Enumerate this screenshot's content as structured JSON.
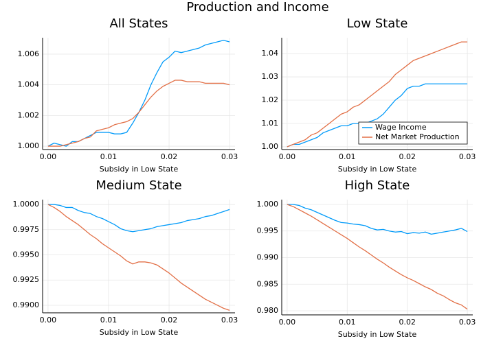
{
  "title": "Production and Income",
  "chart_data": [
    {
      "type": "line",
      "title": "All States",
      "x_label": "Subsidy in Low State",
      "x": [
        0,
        0.001,
        0.002,
        0.003,
        0.004,
        0.005,
        0.006,
        0.007,
        0.008,
        0.009,
        0.01,
        0.011,
        0.012,
        0.013,
        0.014,
        0.015,
        0.016,
        0.017,
        0.018,
        0.019,
        0.02,
        0.021,
        0.022,
        0.023,
        0.024,
        0.025,
        0.026,
        0.027,
        0.028,
        0.029,
        0.03
      ],
      "xlim": [
        -0.0009,
        0.0309
      ],
      "xticks": [
        {
          "value": 0,
          "label": "0.00"
        },
        0.01,
        0.02,
        0.03
      ],
      "ylim": [
        0.99978,
        1.00707
      ],
      "yticks": [
        {
          "value": 1,
          "label": "1.000"
        },
        1.002,
        1.004,
        1.006
      ],
      "grid": true,
      "series": [
        {
          "color": "#009af9",
          "values": [
            1.0,
            1.0002,
            1.0001,
            1.0,
            1.0003,
            1.0003,
            1.0005,
            1.0007,
            1.0009,
            1.0009,
            1.0009,
            1.0008,
            1.0008,
            1.0009,
            1.0015,
            1.0022,
            1.003,
            1.004,
            1.0048,
            1.0055,
            1.0058,
            1.0062,
            1.0061,
            1.0062,
            1.0063,
            1.0064,
            1.0066,
            1.0067,
            1.0068,
            1.0069,
            1.0068
          ]
        },
        {
          "color": "#e26f46",
          "values": [
            1.0,
            1.0,
            1.0,
            1.0001,
            1.0002,
            1.0003,
            1.0005,
            1.0006,
            1.001,
            1.0011,
            1.0012,
            1.0014,
            1.0015,
            1.0016,
            1.0018,
            1.0022,
            1.0027,
            1.0032,
            1.0036,
            1.0039,
            1.0041,
            1.0043,
            1.0043,
            1.0042,
            1.0042,
            1.0042,
            1.0041,
            1.0041,
            1.0041,
            1.0041,
            1.004
          ]
        }
      ]
    },
    {
      "type": "line",
      "title": "Low State",
      "x_label": "Subsidy in Low State",
      "x": [
        0,
        0.001,
        0.002,
        0.003,
        0.004,
        0.005,
        0.006,
        0.007,
        0.008,
        0.009,
        0.01,
        0.011,
        0.012,
        0.013,
        0.014,
        0.015,
        0.016,
        0.017,
        0.018,
        0.019,
        0.02,
        0.021,
        0.022,
        0.023,
        0.024,
        0.025,
        0.026,
        0.027,
        0.028,
        0.029,
        0.03
      ],
      "xlim": [
        -0.0009,
        0.0309
      ],
      "xticks": [
        {
          "value": 0,
          "label": "0.00"
        },
        0.01,
        0.02,
        0.03
      ],
      "ylim": [
        0.9988,
        1.0468
      ],
      "yticks": [
        {
          "value": 1,
          "label": "1.00"
        },
        1.01,
        1.02,
        1.03,
        1.04
      ],
      "grid": true,
      "legend": "bottom right",
      "series": [
        {
          "name": "Wage Income",
          "color": "#009af9",
          "values": [
            1.0,
            1.001,
            1.001,
            1.002,
            1.003,
            1.004,
            1.006,
            1.007,
            1.008,
            1.009,
            1.009,
            1.01,
            1.01,
            1.01,
            1.011,
            1.012,
            1.014,
            1.017,
            1.02,
            1.022,
            1.025,
            1.026,
            1.026,
            1.027,
            1.027,
            1.027,
            1.027,
            1.027,
            1.027,
            1.027,
            1.027
          ]
        },
        {
          "name": "Net Market Production",
          "color": "#e26f46",
          "values": [
            1.0,
            1.001,
            1.002,
            1.003,
            1.005,
            1.006,
            1.008,
            1.01,
            1.012,
            1.014,
            1.015,
            1.017,
            1.018,
            1.02,
            1.022,
            1.024,
            1.026,
            1.028,
            1.031,
            1.033,
            1.035,
            1.037,
            1.038,
            1.039,
            1.04,
            1.041,
            1.042,
            1.043,
            1.044,
            1.045,
            1.045
          ]
        }
      ]
    },
    {
      "type": "line",
      "title": "Medium State",
      "x_label": "Subsidy in Low State",
      "x": [
        0,
        0.001,
        0.002,
        0.003,
        0.004,
        0.005,
        0.006,
        0.007,
        0.008,
        0.009,
        0.01,
        0.011,
        0.012,
        0.013,
        0.014,
        0.015,
        0.016,
        0.017,
        0.018,
        0.019,
        0.02,
        0.021,
        0.022,
        0.023,
        0.024,
        0.025,
        0.026,
        0.027,
        0.028,
        0.029,
        0.03
      ],
      "xlim": [
        -0.0009,
        0.0309
      ],
      "xticks": [
        {
          "value": 0,
          "label": "0.00"
        },
        0.01,
        0.02,
        0.03
      ],
      "ylim": [
        0.98925,
        1.00048
      ],
      "yticks": [
        {
          "value": 0.99,
          "label": "0.9900"
        },
        0.9925,
        {
          "value": 0.995,
          "label": "0.9950"
        },
        0.9975,
        {
          "value": 1,
          "label": "1.0000"
        }
      ],
      "grid": true,
      "series": [
        {
          "color": "#009af9",
          "values": [
            1.0,
            1.0,
            0.9999,
            0.9997,
            0.9997,
            0.9994,
            0.9992,
            0.9991,
            0.9988,
            0.9986,
            0.9983,
            0.998,
            0.9976,
            0.9974,
            0.9973,
            0.9974,
            0.9975,
            0.9976,
            0.9978,
            0.9979,
            0.998,
            0.9981,
            0.9982,
            0.9984,
            0.9985,
            0.9986,
            0.9988,
            0.9989,
            0.9991,
            0.9993,
            0.9995
          ]
        },
        {
          "color": "#e26f46",
          "values": [
            1.0,
            0.9997,
            0.9993,
            0.9988,
            0.9984,
            0.998,
            0.9975,
            0.997,
            0.9966,
            0.9961,
            0.9957,
            0.9953,
            0.9949,
            0.9944,
            0.9941,
            0.9943,
            0.9943,
            0.9942,
            0.994,
            0.9936,
            0.9932,
            0.9927,
            0.9922,
            0.9918,
            0.9914,
            0.991,
            0.9906,
            0.9903,
            0.99,
            0.9897,
            0.9895
          ]
        }
      ]
    },
    {
      "type": "line",
      "title": "High State",
      "x_label": "Subsidy in Low State",
      "x": [
        0,
        0.001,
        0.002,
        0.003,
        0.004,
        0.005,
        0.006,
        0.007,
        0.008,
        0.009,
        0.01,
        0.011,
        0.012,
        0.013,
        0.014,
        0.015,
        0.016,
        0.017,
        0.018,
        0.019,
        0.02,
        0.021,
        0.022,
        0.023,
        0.024,
        0.025,
        0.026,
        0.027,
        0.028,
        0.029,
        0.03
      ],
      "xlim": [
        -0.0009,
        0.0309
      ],
      "xticks": [
        {
          "value": 0,
          "label": "0.00"
        },
        0.01,
        0.02,
        0.03
      ],
      "ylim": [
        0.97923,
        1.0009
      ],
      "yticks": [
        {
          "value": 0.98,
          "label": "0.980"
        },
        0.985,
        {
          "value": 0.99,
          "label": "0.990"
        },
        0.995,
        {
          "value": 1,
          "label": "1.000"
        }
      ],
      "grid": true,
      "series": [
        {
          "color": "#009af9",
          "values": [
            1.0,
            1.0,
            0.9998,
            0.9993,
            0.999,
            0.9985,
            0.998,
            0.9975,
            0.997,
            0.9966,
            0.9965,
            0.9963,
            0.9962,
            0.996,
            0.9955,
            0.9952,
            0.9953,
            0.995,
            0.9948,
            0.9949,
            0.9945,
            0.9947,
            0.9946,
            0.9948,
            0.9944,
            0.9946,
            0.9948,
            0.995,
            0.9952,
            0.9955,
            0.9949
          ]
        },
        {
          "color": "#e26f46",
          "values": [
            1.0,
            0.9996,
            0.999,
            0.9984,
            0.9978,
            0.9971,
            0.9964,
            0.9957,
            0.995,
            0.9943,
            0.9936,
            0.9928,
            0.992,
            0.9913,
            0.9905,
            0.9897,
            0.989,
            0.9882,
            0.9875,
            0.9868,
            0.9862,
            0.9857,
            0.9851,
            0.9845,
            0.984,
            0.9833,
            0.9828,
            0.9821,
            0.9815,
            0.9811,
            0.9803
          ]
        }
      ]
    }
  ]
}
